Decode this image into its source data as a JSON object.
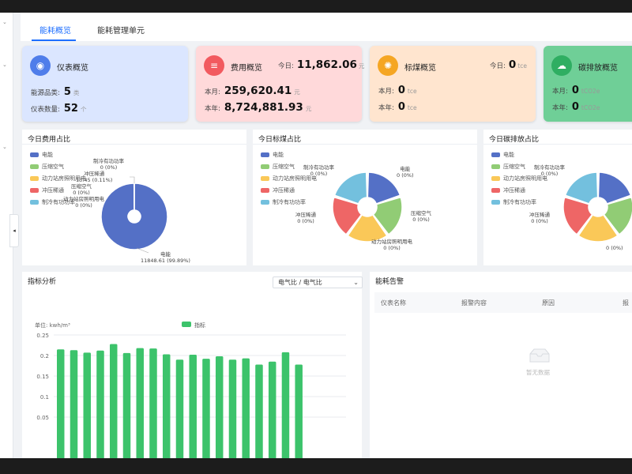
{
  "tabs": [
    "能耗概览",
    "能耗管理单元"
  ],
  "cards": {
    "meter": {
      "title": "仪表概览",
      "types_label": "能源品类:",
      "types_value": "5",
      "types_unit": "类",
      "count_label": "仪表数量:",
      "count_value": "52",
      "count_unit": "个",
      "bg": "#dbe6ff",
      "icon_color": "#4f7dea",
      "icon": "gauge-icon"
    },
    "cost": {
      "title": "费用概览",
      "today_label": "今日:",
      "today_value": "11,862.06",
      "today_unit": "元",
      "month_label": "本月:",
      "month_value": "259,620.41",
      "month_unit": "元",
      "year_label": "本年:",
      "year_value": "8,724,881.93",
      "year_unit": "元",
      "bg": "#ffd9da",
      "icon_color": "#f25a5f",
      "icon": "database-icon"
    },
    "coal": {
      "title": "标煤概览",
      "today_label": "今日:",
      "today_value": "0",
      "today_unit": "tce",
      "month_label": "本月:",
      "month_value": "0",
      "month_unit": "tce",
      "year_label": "本年:",
      "year_value": "0",
      "year_unit": "tce",
      "bg": "#ffe5cf",
      "icon_color": "#f5a623",
      "icon": "dots-icon"
    },
    "carbon": {
      "title": "碳排放概览",
      "month_label": "本月:",
      "month_value": "0",
      "month_unit": "tCO2e",
      "year_label": "本年:",
      "year_value": "0",
      "year_unit": "tCO2e",
      "bg": "#6fcf97",
      "icon_color": "#2fae62",
      "icon": "cloud-icon"
    }
  },
  "pie_cost": {
    "title": "今日费用占比",
    "legend": [
      "电能",
      "压缩空气",
      "动力站房照明用电",
      "冲压稀通",
      "制冷有功功率"
    ],
    "labels": {
      "main": "电能",
      "main_value": "11848.61 (99.89%)",
      "l1": "制冷有功功率",
      "l1v": "0 (0%)",
      "l2": "冲压稀通",
      "l2v": "13.45 (0.11%)",
      "l3": "压缩空气",
      "l3v": "0 (0%)",
      "l4": "动力站房照明用电",
      "l4v": "0 (0%)"
    }
  },
  "pie_coal": {
    "title": "今日标煤占比",
    "legend": [
      "电能",
      "压缩空气",
      "动力站房照明用电",
      "冲压稀通",
      "制冷有功功率"
    ],
    "labels": {
      "l_top_left": "制冷有功功率",
      "l_top_left_v": "0 (0%)",
      "l_top_right": "电能",
      "l_top_right_v": "0 (0%)",
      "l_right": "压缩空气",
      "l_right_v": "0 (0%)",
      "l_bottom": "动力站房照明用电",
      "l_bottom_v": "0 (0%)",
      "l_left": "冲压稀通",
      "l_left_v": "0 (0%)"
    }
  },
  "pie_carbon": {
    "title": "今日碳排放占比",
    "legend": [
      "电能",
      "压缩空气",
      "动力站房照明用电",
      "冲压稀通",
      "制冷有功功率"
    ],
    "labels": {
      "l_top_left": "制冷有功功率",
      "l_top_left_v": "0 (0%)",
      "l_left": "冲压稀通",
      "l_left_v": "0 (0%)",
      "l_bottom_v": "0 (0%)"
    }
  },
  "index": {
    "title": "指标分析",
    "select": "电气比 / 电气比"
  },
  "alarm": {
    "title": "能耗告警",
    "cols": [
      "仪表名称",
      "报警内容",
      "原因",
      "报"
    ],
    "empty": "暂无数据"
  },
  "colors": {
    "blue": "#5470c6",
    "green": "#91cc75",
    "yellow": "#fac858",
    "red": "#ee6666",
    "cyan": "#73c0de",
    "bar": "#3cc36b",
    "accent": "#1e6fff"
  },
  "chart_data": [
    {
      "type": "pie",
      "title": "今日费用占比",
      "categories": [
        "电能",
        "压缩空气",
        "动力站房照明用电",
        "冲压稀通",
        "制冷有功功率"
      ],
      "values": [
        11848.61,
        0,
        0,
        13.45,
        0
      ]
    },
    {
      "type": "pie",
      "title": "今日标煤占比",
      "categories": [
        "电能",
        "压缩空气",
        "动力站房照明用电",
        "冲压稀通",
        "制冷有功功率"
      ],
      "values": [
        0,
        0,
        0,
        0,
        0
      ]
    },
    {
      "type": "pie",
      "title": "今日碳排放占比",
      "categories": [
        "电能",
        "压缩空气",
        "动力站房照明用电",
        "冲压稀通",
        "制冷有功功率"
      ],
      "values": [
        0,
        0,
        0,
        0,
        0
      ]
    },
    {
      "type": "bar",
      "title": "指标分析",
      "ylabel": "单位: kwh/m³",
      "ylim": [
        0,
        0.25
      ],
      "yticks": [
        "0.25",
        "0.2",
        "0.15",
        "0.1",
        "0.05"
      ],
      "series": [
        {
          "name": "指标",
          "values": [
            0.215,
            0.213,
            0.207,
            0.212,
            0.228,
            0.206,
            0.218,
            0.217,
            0.203,
            0.19,
            0.202,
            0.192,
            0.198,
            0.19,
            0.193,
            0.178,
            0.185,
            0.208,
            0.178
          ]
        }
      ],
      "grid": true,
      "legend": "top"
    }
  ]
}
